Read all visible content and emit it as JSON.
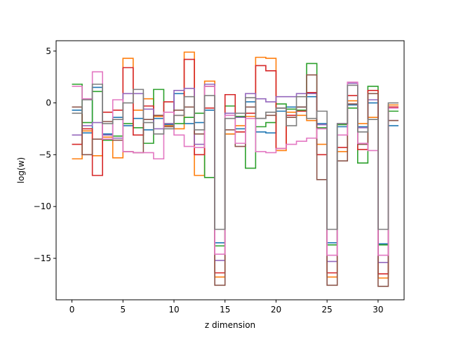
{
  "chart_data": {
    "type": "line",
    "step": "post",
    "xlabel": "z dimension",
    "ylabel": "log(w)",
    "xlim": [
      -1.55,
      32.55
    ],
    "ylim": [
      -19.0,
      6.0
    ],
    "xticks": [
      0,
      5,
      10,
      15,
      20,
      25,
      30
    ],
    "yticks": [
      -15,
      -10,
      -5,
      0,
      5
    ],
    "ytick_labels": [
      "−15",
      "−10",
      "−5",
      "0",
      "5"
    ],
    "x": [
      0,
      1,
      2,
      3,
      4,
      5,
      6,
      7,
      8,
      9,
      10,
      11,
      12,
      13,
      14,
      15,
      16,
      17,
      18,
      19,
      20,
      21,
      22,
      23,
      24,
      25,
      26,
      27,
      28,
      29,
      30,
      31
    ],
    "series": [
      {
        "color": "#1f77b4",
        "values": [
          -0.7,
          -2.9,
          1.5,
          -3.0,
          -1.4,
          -2.2,
          -1.5,
          -2.6,
          -1.5,
          -2.1,
          0.9,
          -2.0,
          -1.9,
          -0.7,
          -13.5,
          -3.0,
          -2.5,
          0.1,
          -2.8,
          -2.9,
          -0.8,
          -0.4,
          -0.4,
          0.6,
          -2.0,
          -13.5,
          -2.3,
          -0.2,
          -2.3,
          0.0,
          -13.6,
          -2.2
        ]
      },
      {
        "color": "#ff7f0e",
        "values": [
          -5.4,
          -2.7,
          -5.1,
          -3.3,
          -5.3,
          4.3,
          -0.7,
          0.4,
          -1.3,
          -2.2,
          -2.5,
          4.9,
          -7.0,
          2.1,
          -16.8,
          -3.0,
          -2.2,
          -1.3,
          4.4,
          4.3,
          -4.6,
          -0.9,
          -1.2,
          -1.7,
          -4.0,
          -16.8,
          -4.7,
          0.2,
          -2.0,
          -1.4,
          -16.9,
          -0.2
        ]
      },
      {
        "color": "#2ca02c",
        "values": [
          1.8,
          -1.9,
          1.1,
          -3.6,
          -3.2,
          -2.0,
          -2.4,
          -3.9,
          1.3,
          -2.0,
          -2.0,
          -1.4,
          -1.0,
          -7.2,
          -13.8,
          -0.3,
          -1.3,
          -6.3,
          -2.3,
          -1.9,
          -0.1,
          -0.6,
          -0.7,
          3.8,
          -2.4,
          -13.7,
          -2.1,
          -0.5,
          -5.8,
          1.6,
          -13.7,
          -0.8
        ]
      },
      {
        "color": "#d62728",
        "values": [
          -4.0,
          -2.5,
          -7.0,
          -0.9,
          -0.7,
          3.4,
          -3.1,
          -0.3,
          -1.2,
          0.1,
          -1.2,
          4.2,
          -5.0,
          -0.5,
          -16.4,
          0.8,
          -2.8,
          -1.0,
          3.6,
          3.1,
          -4.4,
          -1.2,
          -0.8,
          1.0,
          -5.0,
          -16.4,
          -4.3,
          0.7,
          -4.5,
          1.2,
          -16.5,
          -0.4
        ]
      },
      {
        "color": "#9467bd",
        "values": [
          -3.1,
          -2.2,
          -1.9,
          -3.1,
          -3.4,
          0.9,
          0.9,
          -0.6,
          -2.5,
          -2.0,
          1.2,
          1.4,
          -4.0,
          1.8,
          -15.2,
          -1.0,
          -1.4,
          0.9,
          0.4,
          0.1,
          0.6,
          0.6,
          0.9,
          0.9,
          -2.1,
          -15.3,
          -2.0,
          1.9,
          -2.4,
          0.3,
          -15.4,
          -1.7
        ]
      },
      {
        "color": "#8c564b",
        "values": [
          -0.4,
          -5.0,
          -3.5,
          -1.8,
          -3.6,
          -4.7,
          -4.8,
          -1.6,
          -1.2,
          -2.3,
          -0.7,
          -0.4,
          -3.0,
          1.6,
          -17.6,
          -2.6,
          -4.2,
          -0.4,
          -1.5,
          -1.2,
          -0.5,
          -1.4,
          -0.4,
          2.7,
          -7.4,
          -17.6,
          -5.6,
          -0.1,
          -4.0,
          0.9,
          -17.7,
          -1.7
        ]
      },
      {
        "color": "#e377c2",
        "values": [
          1.6,
          0.4,
          3.0,
          -3.5,
          0.3,
          -4.7,
          -4.8,
          -4.8,
          -5.4,
          -0.9,
          -3.1,
          -4.2,
          -4.3,
          1.6,
          -14.6,
          -1.2,
          -3.9,
          -1.5,
          -4.7,
          -4.8,
          -4.4,
          -4.0,
          -3.7,
          -3.4,
          -2.5,
          -14.7,
          -3.1,
          2.0,
          -3.9,
          -4.6,
          -14.7,
          -0.5
        ]
      },
      {
        "color": "#7f7f7f",
        "values": [
          -1.0,
          0.3,
          1.8,
          -2.0,
          -1.6,
          0.0,
          1.3,
          -1.9,
          -3.0,
          -2.5,
          -1.2,
          0.6,
          -2.6,
          0.7,
          -12.2,
          -1.5,
          -1.0,
          0.5,
          -1.5,
          -0.9,
          -0.5,
          -2.2,
          0.6,
          -1.5,
          -0.8,
          -12.2,
          -2.0,
          1.7,
          -2.8,
          -1.6,
          -12.2,
          0.0
        ]
      }
    ]
  }
}
